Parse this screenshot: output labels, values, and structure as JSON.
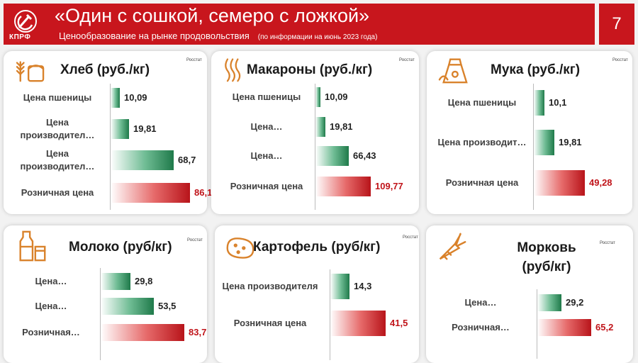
{
  "header": {
    "logo_text": "КПРФ",
    "title": "«Один с сошкой, семеро с ложкой»",
    "subtitle": "Ценообразование на рынке продовольствия",
    "subtitle_note": "(по информации на июнь 2023 года)",
    "page_number": "7"
  },
  "colors": {
    "brand_red": "#c8161d",
    "bar_green": "#1f7a4a",
    "bar_red": "#b8141a"
  },
  "cards": {
    "bread": {
      "title": "Хлеб (руб./кг)",
      "source": "Росстат",
      "icon": "bread-icon",
      "rows": [
        {
          "label": "Цена пшеницы",
          "value": "10,09",
          "color": "green"
        },
        {
          "label": "Цена производител…",
          "value": "19,81",
          "color": "green"
        },
        {
          "label": "Цена производител…",
          "value": "68,7",
          "color": "green"
        },
        {
          "label": "Розничная цена",
          "value": "86,1",
          "color": "red"
        }
      ]
    },
    "pasta": {
      "title": "Макароны (руб./кг)",
      "source": "Росстат",
      "icon": "pasta-icon",
      "rows": [
        {
          "label": "Цена пшеницы",
          "value": "10,09",
          "color": "green"
        },
        {
          "label": "Цена…",
          "value": "19,81",
          "color": "green"
        },
        {
          "label": "Цена…",
          "value": "66,43",
          "color": "green"
        },
        {
          "label": "Розничная цена",
          "value": "109,77",
          "color": "red"
        }
      ]
    },
    "flour": {
      "title": "Мука (руб./кг)",
      "source": "Росстат",
      "icon": "flour-icon",
      "rows": [
        {
          "label": "Цена пшеницы",
          "value": "10,1",
          "color": "green"
        },
        {
          "label": "Цена производит…",
          "value": "19,81",
          "color": "green"
        },
        {
          "label": "Розничная цена",
          "value": "49,28",
          "color": "red"
        }
      ]
    },
    "milk": {
      "title": "Молоко (руб/кг)",
      "source": "Росстат",
      "icon": "milk-icon",
      "rows": [
        {
          "label": "Цена…",
          "value": "29,8",
          "color": "green"
        },
        {
          "label": "Цена…",
          "value": "53,5",
          "color": "green"
        },
        {
          "label": "Розничная…",
          "value": "83,7",
          "color": "red"
        }
      ]
    },
    "potato": {
      "title": "Картофель (руб/кг)",
      "source": "Росстат",
      "icon": "potato-icon",
      "rows": [
        {
          "label": "Цена производителя",
          "value": "14,3",
          "color": "green"
        },
        {
          "label": "Розничная цена",
          "value": "41,5",
          "color": "red"
        }
      ]
    },
    "carrot": {
      "title": "Морковь (руб/кг)",
      "source": "Росстат",
      "icon": "carrot-icon",
      "rows": [
        {
          "label": "Цена…",
          "value": "29,2",
          "color": "green"
        },
        {
          "label": "Розничная…",
          "value": "65,2",
          "color": "red"
        }
      ]
    }
  }
}
